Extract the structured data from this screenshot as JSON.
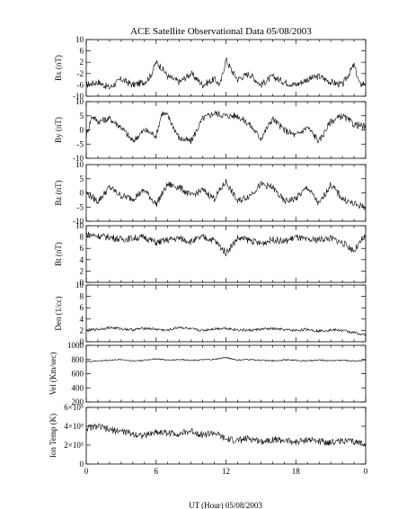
{
  "chart_data": {
    "type": "line",
    "title": "ACE Satellite Observational Data   05/08/2003",
    "xlabel": "UT (Hour)   05/08/2003",
    "x_ticks": [
      "0",
      "6",
      "12",
      "18",
      "0"
    ],
    "xlim": [
      0,
      24
    ],
    "panels": [
      {
        "name": "bx",
        "ylabel": "Bx (nT)",
        "ylim": [
          -10,
          10
        ],
        "yticks": [
          "10",
          "6",
          "2",
          "-2",
          "-6",
          "-10"
        ],
        "x": [
          0,
          1,
          2,
          3,
          4,
          5,
          5.5,
          6,
          6.5,
          7,
          8,
          9,
          10,
          11,
          11.5,
          12,
          12.5,
          13,
          14,
          15,
          16,
          17,
          18,
          19,
          20,
          21,
          22,
          23,
          23.5,
          24
        ],
        "values": [
          -6,
          -5,
          -7,
          -4,
          -6,
          -5,
          -3,
          2,
          0,
          -3,
          -5,
          -2,
          -6,
          -4,
          -6,
          3,
          -1,
          -4,
          -2,
          -6,
          -3,
          -5,
          -6,
          -4,
          -3,
          -5,
          -6,
          1,
          -6,
          -5
        ]
      },
      {
        "name": "by",
        "ylabel": "By (nT)",
        "ylim": [
          -10,
          10
        ],
        "yticks": [
          "10",
          "5",
          "0",
          "-5",
          "-10"
        ],
        "x": [
          0,
          0.5,
          1,
          2,
          3,
          4,
          5,
          6,
          6.5,
          7,
          8,
          9,
          10,
          11,
          12,
          13,
          14,
          15,
          16,
          17,
          18,
          19,
          20,
          21,
          22,
          23,
          24
        ],
        "values": [
          -2,
          5,
          3,
          4,
          1,
          -4,
          0,
          -2,
          6,
          5,
          -3,
          -4,
          4,
          6,
          5,
          5,
          2,
          -3,
          4,
          0,
          -2,
          1,
          -4,
          3,
          5,
          2,
          1
        ]
      },
      {
        "name": "bz",
        "ylabel": "Bz (nT)",
        "ylim": [
          -10,
          10
        ],
        "yticks": [
          "10",
          "5",
          "0",
          "-5",
          "-10"
        ],
        "x": [
          0,
          1,
          2,
          3,
          4,
          5,
          6,
          7,
          8,
          9,
          10,
          11,
          12,
          13,
          14,
          15,
          16,
          17,
          18,
          19,
          20,
          21,
          22,
          23,
          24
        ],
        "values": [
          0,
          -3,
          2,
          -1,
          -2,
          1,
          -4,
          3,
          2,
          -1,
          1,
          -2,
          4,
          -3,
          -1,
          3,
          2,
          -3,
          -2,
          2,
          -4,
          3,
          -2,
          -4,
          -5
        ]
      },
      {
        "name": "bt",
        "ylabel": "Bt (nT)",
        "ylim": [
          0,
          10
        ],
        "yticks": [
          "10",
          "8",
          "6",
          "4",
          "2",
          "0"
        ],
        "x": [
          0,
          1,
          2,
          3,
          4,
          5,
          6,
          7,
          8,
          9,
          10,
          11,
          12,
          13,
          14,
          15,
          16,
          17,
          18,
          19,
          20,
          21,
          22,
          23,
          24
        ],
        "values": [
          8.5,
          8.2,
          8,
          7.6,
          7.8,
          8,
          7,
          7.5,
          7.8,
          7.2,
          8,
          7.4,
          5.2,
          7.8,
          7.5,
          6.8,
          7.6,
          7.2,
          8,
          7.4,
          7.6,
          7.8,
          7,
          5.6,
          8.2
        ]
      },
      {
        "name": "den",
        "ylabel": "Den (1/cc)",
        "ylim": [
          0,
          10
        ],
        "yticks": [
          "10",
          "8",
          "6",
          "4",
          "2",
          "0"
        ],
        "x": [
          0,
          1,
          2,
          3,
          4,
          5,
          6,
          7,
          8,
          9,
          10,
          11,
          12,
          13,
          14,
          15,
          16,
          17,
          18,
          19,
          20,
          21,
          22,
          23,
          24
        ],
        "values": [
          2,
          2.2,
          2.5,
          2.3,
          2.1,
          2.4,
          2.2,
          2,
          2.6,
          2.2,
          2,
          2.3,
          2.4,
          2.1,
          2,
          2.2,
          2.3,
          2.1,
          2,
          2.2,
          1.9,
          2.1,
          2,
          1.6,
          1.2
        ]
      },
      {
        "name": "vel",
        "ylabel": "Vel (Km/sec)",
        "ylim": [
          200,
          1000
        ],
        "yticks": [
          "1000",
          "800",
          "600",
          "400",
          "200"
        ],
        "x": [
          0,
          1,
          2,
          3,
          4,
          5,
          6,
          7,
          8,
          9,
          10,
          11,
          12,
          13,
          14,
          15,
          16,
          17,
          18,
          19,
          20,
          21,
          22,
          23,
          24
        ],
        "values": [
          770,
          780,
          790,
          800,
          780,
          790,
          810,
          790,
          800,
          790,
          795,
          800,
          830,
          790,
          800,
          790,
          780,
          795,
          790,
          780,
          790,
          785,
          790,
          780,
          790
        ]
      },
      {
        "name": "temp",
        "ylabel": "Ion Temp (K)",
        "ylim": [
          0,
          600000
        ],
        "yticks": [
          "6×10⁵",
          "4×10⁵",
          "2×10⁵",
          "0"
        ],
        "x": [
          0,
          1,
          2,
          3,
          4,
          5,
          6,
          7,
          8,
          9,
          10,
          11,
          12,
          13,
          14,
          15,
          16,
          17,
          18,
          19,
          20,
          21,
          22,
          23,
          24
        ],
        "values": [
          380000,
          400000,
          360000,
          350000,
          320000,
          300000,
          340000,
          330000,
          320000,
          350000,
          310000,
          330000,
          260000,
          250000,
          270000,
          240000,
          260000,
          250000,
          230000,
          260000,
          240000,
          230000,
          250000,
          230000,
          220000
        ]
      }
    ]
  }
}
